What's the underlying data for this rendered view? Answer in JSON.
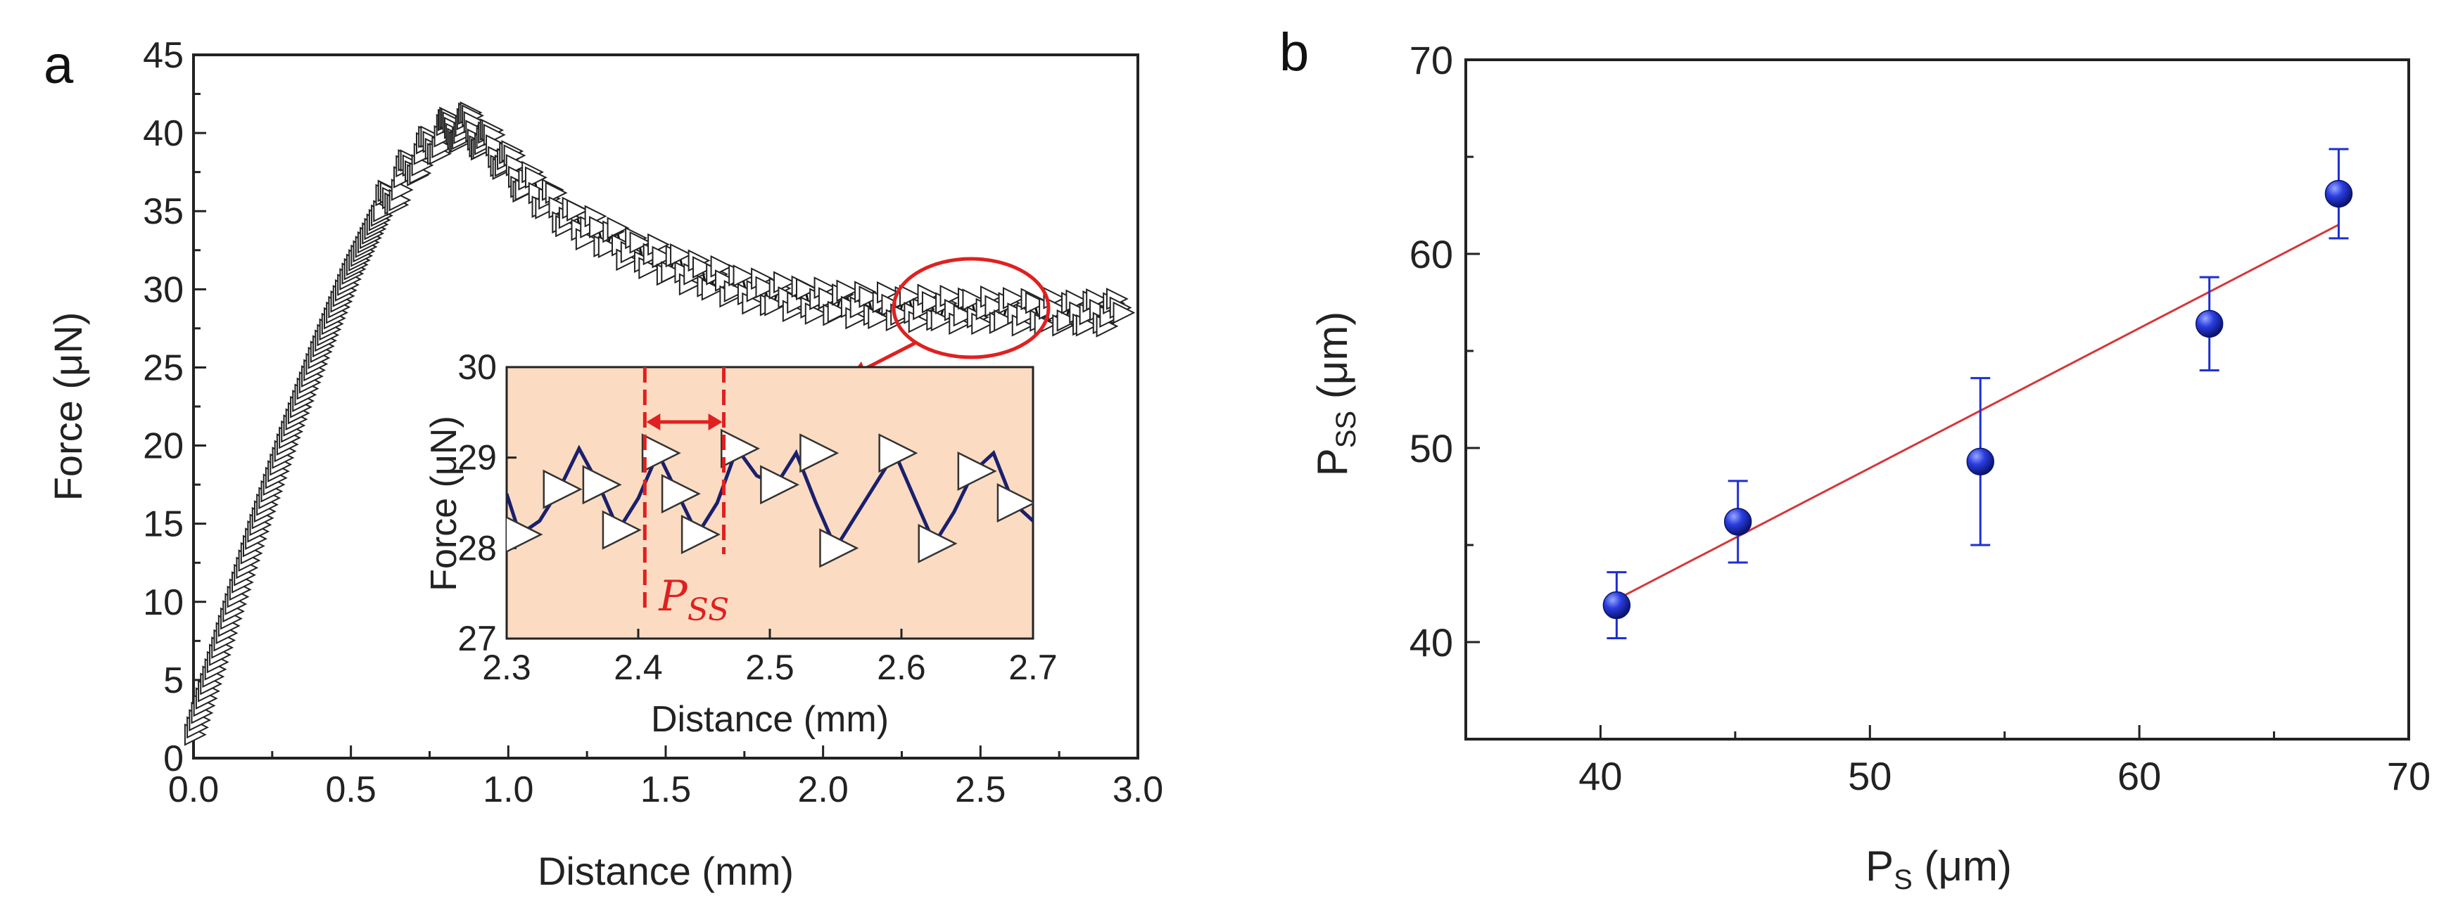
{
  "chart_data": [
    {
      "panel": "a",
      "type": "line",
      "xlabel": "Distance (mm)",
      "ylabel": "Force (μN)",
      "xlim": [
        0,
        3.0
      ],
      "ylim": [
        0,
        45
      ],
      "xticks": [
        "0.0",
        "0.5",
        "1.0",
        "1.5",
        "2.0",
        "2.5",
        "3.0"
      ],
      "yticks": [
        "0",
        "5",
        "10",
        "15",
        "20",
        "25",
        "30",
        "35",
        "40",
        "45"
      ],
      "marker": "right-triangle",
      "series": [
        {
          "name": "Force",
          "x": [
            0.0,
            0.1,
            0.2,
            0.3,
            0.4,
            0.5,
            0.6,
            0.7,
            0.8,
            0.87,
            0.95,
            1.05,
            1.2,
            1.4,
            1.6,
            1.8,
            2.0,
            2.2,
            2.4,
            2.6,
            2.8,
            2.95
          ],
          "y": [
            1.5,
            8,
            14.5,
            20.5,
            26,
            31,
            35,
            38,
            40,
            40.5,
            39.2,
            37,
            34.5,
            32.5,
            31,
            29.8,
            29.2,
            28.9,
            28.7,
            28.6,
            28.5,
            28.5
          ]
        }
      ],
      "annotation": {
        "type": "circle",
        "label": "zoom region",
        "center": [
          2.45,
          29
        ]
      },
      "inset": {
        "type": "line",
        "xlabel": "Distance (mm)",
        "ylabel": "Force (μN)",
        "xlim": [
          2.3,
          2.7
        ],
        "ylim": [
          27,
          30
        ],
        "xticks": [
          "2.3",
          "2.4",
          "2.5",
          "2.6",
          "2.7"
        ],
        "yticks": [
          "27",
          "28",
          "29",
          "30"
        ],
        "background": "#fbdcc2",
        "line_color": "#1a1f6e",
        "x": [
          2.3,
          2.31,
          2.325,
          2.34,
          2.355,
          2.37,
          2.385,
          2.4,
          2.415,
          2.43,
          2.445,
          2.46,
          2.475,
          2.49,
          2.505,
          2.52,
          2.535,
          2.55,
          2.565,
          2.58,
          2.595,
          2.61,
          2.625,
          2.64,
          2.655,
          2.67,
          2.685,
          2.7
        ],
        "y": [
          28.6,
          28.15,
          28.3,
          28.65,
          29.1,
          28.7,
          28.2,
          28.55,
          29.05,
          28.6,
          28.15,
          28.5,
          29.1,
          28.8,
          28.7,
          29.05,
          28.5,
          28.0,
          28.35,
          28.7,
          29.05,
          28.55,
          28.05,
          28.4,
          28.85,
          29.05,
          28.5,
          28.3
        ],
        "marker_x": [
          2.31,
          2.34,
          2.37,
          2.385,
          2.415,
          2.43,
          2.445,
          2.475,
          2.505,
          2.535,
          2.55,
          2.595,
          2.625,
          2.655,
          2.685
        ],
        "marker_y": [
          28.15,
          28.65,
          28.7,
          28.2,
          29.05,
          28.6,
          28.15,
          29.1,
          28.7,
          29.05,
          28.0,
          29.05,
          28.05,
          28.85,
          28.5
        ],
        "pss_label_main": "P",
        "pss_label_sub": "SS",
        "pss_lines_x": [
          2.405,
          2.465
        ],
        "pss_color": "#e02020"
      }
    },
    {
      "panel": "b",
      "type": "scatter",
      "xlabel_main": "P",
      "xlabel_sub": "S",
      "xlabel_unit": " (μm)",
      "ylabel_main": "P",
      "ylabel_sub": "SS",
      "ylabel_unit": " (μm)",
      "xlim": [
        35,
        70
      ],
      "ylim": [
        35,
        70
      ],
      "xticks": [
        "40",
        "50",
        "60",
        "70"
      ],
      "yticks": [
        "40",
        "50",
        "60",
        "70"
      ],
      "points_x": [
        40.6,
        45.1,
        54.1,
        62.6,
        67.4
      ],
      "points_y": [
        41.9,
        46.2,
        49.3,
        56.4,
        63.1
      ],
      "errors": [
        1.7,
        2.1,
        4.3,
        2.4,
        2.3
      ],
      "fit": {
        "x": [
          40.6,
          67.4
        ],
        "y": [
          42.2,
          61.5
        ]
      },
      "point_color": "#1e2fd0",
      "fit_color": "#d4383a"
    }
  ],
  "panel_labels": {
    "a": "a",
    "b": "b"
  }
}
